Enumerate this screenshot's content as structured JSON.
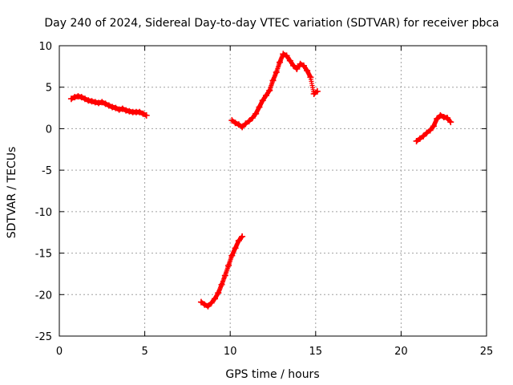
{
  "chart_data": {
    "type": "scatter",
    "title": "Day 240 of 2024, Sidereal Day-to-day VTEC variation (SDTVAR) for receiver pbca",
    "xlabel": "GPS time / hours",
    "ylabel": "SDTVAR / TECUs",
    "xlim": [
      0,
      25
    ],
    "ylim": [
      -25,
      10
    ],
    "xticks": [
      0,
      5,
      10,
      15,
      20,
      25
    ],
    "yticks": [
      -25,
      -20,
      -15,
      -10,
      -5,
      0,
      5,
      10
    ],
    "grid": true,
    "marker": "plus",
    "color": "#ff0000",
    "series": [
      {
        "name": "segment-1",
        "x": [
          0.7,
          0.9,
          1.1,
          1.3,
          1.5,
          1.7,
          1.9,
          2.1,
          2.3,
          2.5,
          2.7,
          2.9,
          3.1,
          3.3,
          3.5,
          3.7,
          3.9,
          4.1,
          4.3,
          4.5,
          4.7,
          4.9,
          5.1
        ],
        "y": [
          3.6,
          3.8,
          3.9,
          3.8,
          3.6,
          3.4,
          3.3,
          3.2,
          3.1,
          3.2,
          3.0,
          2.8,
          2.6,
          2.5,
          2.3,
          2.4,
          2.2,
          2.1,
          2.0,
          2.0,
          2.0,
          1.8,
          1.6
        ]
      },
      {
        "name": "segment-2",
        "x": [
          8.3,
          8.5,
          8.7,
          8.9,
          9.1,
          9.3,
          9.5,
          9.7,
          9.9,
          10.1,
          10.3,
          10.5,
          10.7
        ],
        "y": [
          -20.9,
          -21.2,
          -21.4,
          -21.0,
          -20.5,
          -19.8,
          -18.8,
          -17.7,
          -16.5,
          -15.3,
          -14.4,
          -13.5,
          -13.0
        ]
      },
      {
        "name": "segment-3",
        "x": [
          10.1,
          10.3,
          10.5,
          10.7,
          10.9,
          11.1,
          11.3,
          11.5,
          11.7,
          11.9,
          12.1,
          12.3,
          12.5,
          12.7,
          12.9,
          13.1,
          13.3,
          13.5,
          13.7,
          13.9,
          14.1,
          14.3,
          14.5,
          14.7,
          14.9,
          15.1
        ],
        "y": [
          1.0,
          0.7,
          0.5,
          0.2,
          0.6,
          0.9,
          1.3,
          1.8,
          2.6,
          3.4,
          4.0,
          4.6,
          5.8,
          6.8,
          8.0,
          9.0,
          8.8,
          8.2,
          7.6,
          7.2,
          7.8,
          7.6,
          7.0,
          6.2,
          4.2,
          4.5
        ]
      },
      {
        "name": "segment-4",
        "x": [
          20.9,
          21.1,
          21.3,
          21.5,
          21.7,
          21.9,
          22.1,
          22.3,
          22.5,
          22.7,
          22.9
        ],
        "y": [
          -1.5,
          -1.2,
          -0.9,
          -0.5,
          -0.2,
          0.3,
          1.2,
          1.6,
          1.4,
          1.3,
          0.8
        ]
      }
    ]
  }
}
